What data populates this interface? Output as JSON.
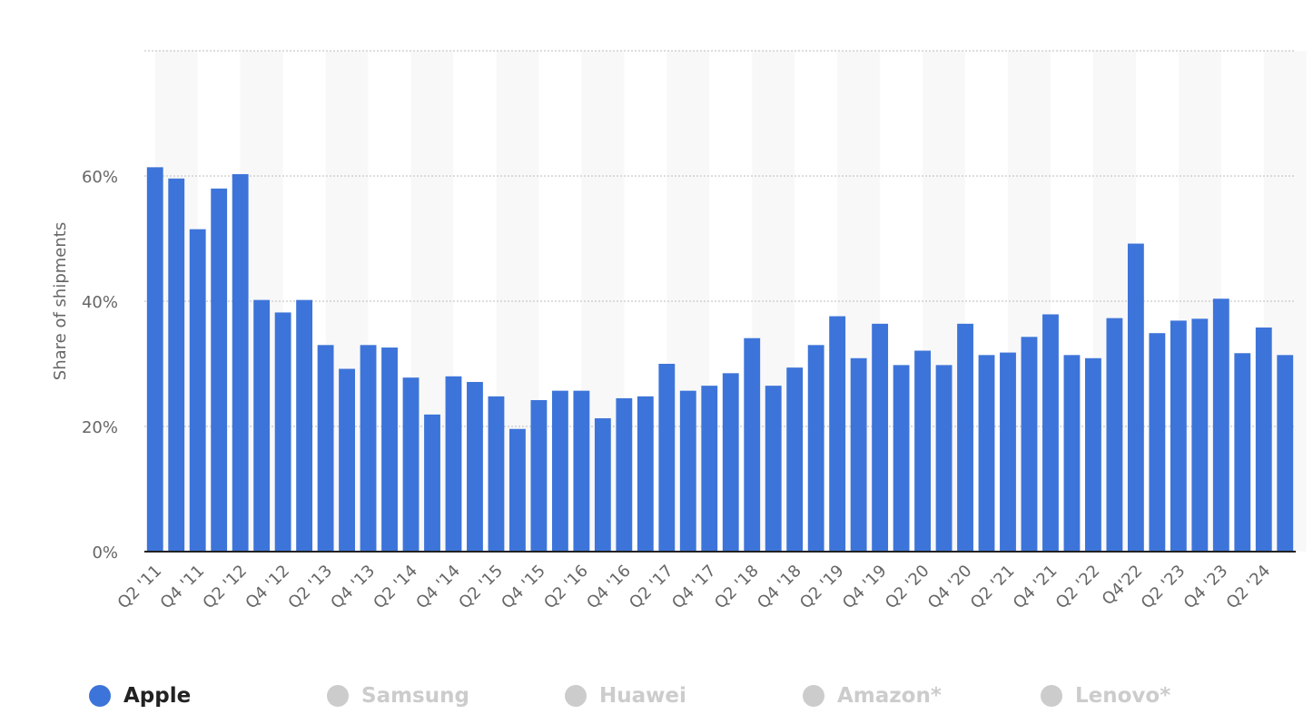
{
  "chart_data": {
    "type": "bar",
    "ylabel": "Share of shipments",
    "ylim": [
      0,
      80
    ],
    "y_ticks": [
      "0%",
      "20%",
      "40%",
      "60%"
    ],
    "y_tick_values": [
      0,
      20,
      40,
      60
    ],
    "grid": true,
    "categories": [
      "Q2 '11",
      "Q3 '11",
      "Q4 '11",
      "Q1 '12",
      "Q2 '12",
      "Q3 '12",
      "Q4 '12",
      "Q1 '13",
      "Q2 '13",
      "Q3 '13",
      "Q4 '13",
      "Q1 '14",
      "Q2 '14",
      "Q3 '14",
      "Q4 '14",
      "Q1 '15",
      "Q2 '15",
      "Q3 '15",
      "Q4 '15",
      "Q1 '16",
      "Q2 '16",
      "Q3 '16",
      "Q4 '16",
      "Q1 '17",
      "Q2 '17",
      "Q3 '17",
      "Q4 '17",
      "Q1 '18",
      "Q2 '18",
      "Q3 '18",
      "Q4 '18",
      "Q1 '19",
      "Q2 '19",
      "Q3 '19",
      "Q4 '19",
      "Q1 '20",
      "Q2 '20",
      "Q3 '20",
      "Q4 '20",
      "Q1 '21",
      "Q2 '21",
      "Q3 '21",
      "Q4 '21",
      "Q1 '22",
      "Q2 '22",
      "Q3 '22",
      "Q4'22",
      "Q1 '23",
      "Q2 '23",
      "Q3 '23",
      "Q4 '23",
      "Q1 '24",
      "Q2 '24",
      "Q3 '24"
    ],
    "x_tick_labels": [
      "Q2 '11",
      "Q4 '11",
      "Q2 '12",
      "Q4 '12",
      "Q2 '13",
      "Q4 '13",
      "Q2 '14",
      "Q4 '14",
      "Q2 '15",
      "Q4 '15",
      "Q2 '16",
      "Q4 '16",
      "Q2 '17",
      "Q4 '17",
      "Q2 '18",
      "Q4 '18",
      "Q2 '19",
      "Q4 '19",
      "Q2 '20",
      "Q4 '20",
      "Q2 '21",
      "Q4 '21",
      "Q2 '22",
      "Q4'22",
      "Q2 '23",
      "Q4 '23",
      "Q2 '24"
    ],
    "series": [
      {
        "name": "Apple",
        "color": "#3d74d9",
        "values": [
          61.4,
          59.6,
          51.5,
          58,
          60.3,
          40.2,
          38.2,
          40.2,
          33,
          29.2,
          33,
          32.6,
          27.8,
          21.9,
          28,
          27.1,
          24.8,
          19.6,
          24.2,
          25.7,
          25.7,
          21.3,
          24.5,
          24.8,
          30,
          25.7,
          26.5,
          28.5,
          34.1,
          26.5,
          29.4,
          33,
          37.6,
          30.9,
          36.4,
          29.8,
          32.1,
          29.8,
          36.4,
          31.4,
          31.8,
          34.3,
          37.9,
          31.4,
          30.9,
          37.3,
          49.2,
          34.9,
          36.9,
          37.2,
          40.4,
          31.7,
          35.8,
          31.4
        ]
      }
    ]
  },
  "legend": {
    "items": [
      {
        "label": "Apple",
        "active": true,
        "color": "#3d74d9"
      },
      {
        "label": "Samsung",
        "active": false,
        "color": "#cccccc"
      },
      {
        "label": "Huawei",
        "active": false,
        "color": "#cccccc"
      },
      {
        "label": "Amazon*",
        "active": false,
        "color": "#cccccc"
      },
      {
        "label": "Lenovo*",
        "active": false,
        "color": "#cccccc"
      }
    ]
  }
}
